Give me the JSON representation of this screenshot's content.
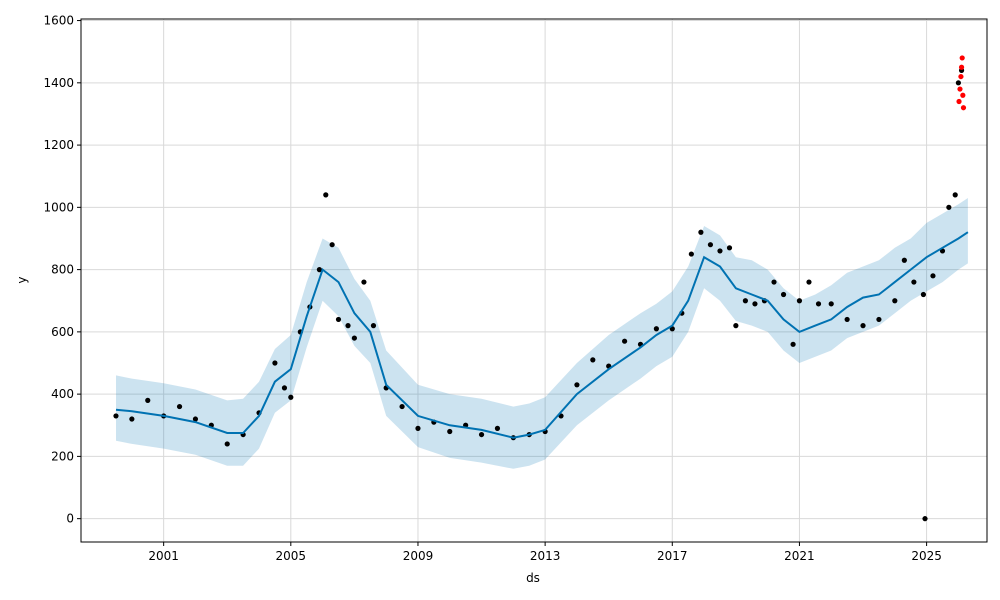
{
  "chart_data": {
    "type": "scatter",
    "title": "",
    "xlabel": "ds",
    "ylabel": "y",
    "xlim": [
      1998.4,
      2026.9
    ],
    "ylim": [
      -75,
      1605
    ],
    "x_ticks": [
      2001,
      2005,
      2009,
      2013,
      2017,
      2021,
      2025
    ],
    "x_tick_labels": [
      "2001",
      "2005",
      "2009",
      "2013",
      "2017",
      "2021",
      "2025"
    ],
    "y_ticks": [
      0,
      200,
      400,
      600,
      800,
      1000,
      1200,
      1400,
      1600
    ],
    "y_tick_labels": [
      "0",
      "200",
      "400",
      "600",
      "800",
      "1000",
      "1200",
      "1400",
      "1600"
    ],
    "grid": true,
    "colors": {
      "observed": "#000000",
      "highlight": "#ff0000",
      "forecast_line": "#0072b2",
      "uncertainty_band": "#0072b2"
    },
    "series": [
      {
        "role": "observed",
        "x": [
          1999.5,
          2000.0,
          2000.5,
          2001.0,
          2001.5,
          2002.0,
          2002.5,
          2003.0,
          2003.5,
          2004.0,
          2004.5,
          2004.8,
          2005.0,
          2005.3,
          2005.6,
          2005.9,
          2006.1,
          2006.3,
          2006.5,
          2006.8,
          2007.0,
          2007.3,
          2007.6,
          2008.0,
          2008.5,
          2009.0,
          2009.5,
          2010.0,
          2010.5,
          2011.0,
          2011.5,
          2012.0,
          2012.5,
          2013.0,
          2013.5,
          2014.0,
          2014.5,
          2015.0,
          2015.5,
          2016.0,
          2016.5,
          2017.0,
          2017.3,
          2017.6,
          2017.9,
          2018.2,
          2018.5,
          2018.8,
          2019.0,
          2019.3,
          2019.6,
          2019.9,
          2020.2,
          2020.5,
          2020.8,
          2021.0,
          2021.3,
          2021.6,
          2022.0,
          2022.5,
          2023.0,
          2023.5,
          2024.0,
          2024.3,
          2024.6,
          2024.9,
          2025.2,
          2025.5,
          2025.7,
          2025.9,
          2026.0,
          2026.1
        ],
        "y": [
          330,
          320,
          380,
          330,
          360,
          320,
          300,
          240,
          270,
          340,
          500,
          420,
          390,
          600,
          680,
          800,
          1040,
          880,
          640,
          620,
          580,
          760,
          620,
          420,
          360,
          290,
          310,
          280,
          300,
          270,
          290,
          260,
          270,
          280,
          330,
          430,
          510,
          490,
          570,
          560,
          610,
          610,
          660,
          850,
          920,
          880,
          860,
          870,
          620,
          700,
          690,
          700,
          760,
          720,
          560,
          700,
          760,
          690,
          690,
          640,
          620,
          640,
          700,
          830,
          760,
          720,
          780,
          860,
          1000,
          1040,
          1400,
          1440
        ]
      },
      {
        "role": "highlight",
        "x": [
          2026.02,
          2026.05,
          2026.08,
          2026.1,
          2026.12,
          2026.14,
          2026.16
        ],
        "y": [
          1340,
          1380,
          1420,
          1450,
          1480,
          1360,
          1320
        ]
      },
      {
        "role": "outlier",
        "x": [
          2024.95
        ],
        "y": [
          0
        ]
      },
      {
        "role": "forecast",
        "x": [
          1999.5,
          2000.0,
          2001.0,
          2002.0,
          2003.0,
          2003.5,
          2004.0,
          2004.5,
          2005.0,
          2005.5,
          2006.0,
          2006.5,
          2007.0,
          2007.5,
          2008.0,
          2009.0,
          2010.0,
          2011.0,
          2012.0,
          2012.5,
          2013.0,
          2014.0,
          2015.0,
          2016.0,
          2016.5,
          2017.0,
          2017.5,
          2018.0,
          2018.5,
          2019.0,
          2019.5,
          2020.0,
          2020.5,
          2021.0,
          2021.5,
          2022.0,
          2022.5,
          2023.0,
          2023.5,
          2024.0,
          2024.5,
          2025.0,
          2025.5,
          2026.0,
          2026.3
        ],
        "y": [
          350,
          345,
          330,
          310,
          275,
          275,
          330,
          440,
          480,
          650,
          800,
          760,
          660,
          600,
          430,
          330,
          300,
          285,
          260,
          270,
          285,
          400,
          480,
          550,
          590,
          620,
          700,
          840,
          810,
          740,
          720,
          700,
          640,
          600,
          620,
          640,
          680,
          710,
          720,
          760,
          800,
          840,
          870,
          900,
          920
        ]
      },
      {
        "role": "band_upper",
        "x": [
          1999.5,
          2000.0,
          2001.0,
          2002.0,
          2003.0,
          2003.5,
          2004.0,
          2004.5,
          2005.0,
          2005.5,
          2006.0,
          2006.5,
          2007.0,
          2007.5,
          2008.0,
          2009.0,
          2010.0,
          2011.0,
          2012.0,
          2012.5,
          2013.0,
          2014.0,
          2015.0,
          2016.0,
          2016.5,
          2017.0,
          2017.5,
          2018.0,
          2018.5,
          2019.0,
          2019.5,
          2020.0,
          2020.5,
          2021.0,
          2021.5,
          2022.0,
          2022.5,
          2023.0,
          2023.5,
          2024.0,
          2024.5,
          2025.0,
          2025.5,
          2026.0,
          2026.3
        ],
        "y": [
          460,
          450,
          435,
          415,
          380,
          385,
          440,
          545,
          590,
          760,
          900,
          870,
          770,
          700,
          540,
          430,
          400,
          385,
          360,
          370,
          390,
          500,
          590,
          660,
          690,
          730,
          810,
          940,
          910,
          840,
          830,
          800,
          740,
          700,
          720,
          750,
          790,
          810,
          830,
          870,
          900,
          950,
          980,
          1010,
          1030
        ]
      },
      {
        "role": "band_lower",
        "x": [
          1999.5,
          2000.0,
          2001.0,
          2002.0,
          2003.0,
          2003.5,
          2004.0,
          2004.5,
          2005.0,
          2005.5,
          2006.0,
          2006.5,
          2007.0,
          2007.5,
          2008.0,
          2009.0,
          2010.0,
          2011.0,
          2012.0,
          2012.5,
          2013.0,
          2014.0,
          2015.0,
          2016.0,
          2016.5,
          2017.0,
          2017.5,
          2018.0,
          2018.5,
          2019.0,
          2019.5,
          2020.0,
          2020.5,
          2021.0,
          2021.5,
          2022.0,
          2022.5,
          2023.0,
          2023.5,
          2024.0,
          2024.5,
          2025.0,
          2025.5,
          2026.0,
          2026.3
        ],
        "y": [
          250,
          240,
          225,
          205,
          170,
          170,
          225,
          340,
          380,
          550,
          700,
          650,
          555,
          500,
          330,
          230,
          195,
          180,
          160,
          170,
          190,
          300,
          380,
          450,
          490,
          520,
          600,
          740,
          700,
          635,
          620,
          600,
          540,
          500,
          520,
          540,
          580,
          600,
          620,
          660,
          700,
          730,
          760,
          800,
          820
        ]
      }
    ]
  }
}
